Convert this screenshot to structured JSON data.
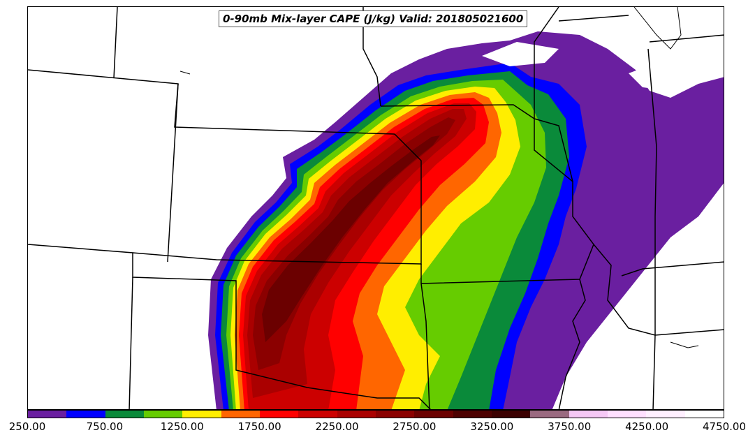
{
  "title": "0-90mb Mix-layer CAPE (J/kg) Valid: 201805021600",
  "colorbar": {
    "colors": [
      "#6a1fa0",
      "#0000ff",
      "#0a8a3a",
      "#66cc00",
      "#ffee00",
      "#ff6600",
      "#ff0000",
      "#cc0000",
      "#aa0000",
      "#8b0000",
      "#6b0000",
      "#4d0000",
      "#3b0000",
      "#9a6a80",
      "#f5c8f5",
      "#ffe0ff",
      "#fff0ff",
      "#ffffff"
    ],
    "tick_labels": [
      "250.00",
      "750.00",
      "1250.00",
      "1750.00",
      "2250.00",
      "2750.00",
      "3250.00",
      "3750.00",
      "4250.00",
      "4750.00"
    ]
  }
}
